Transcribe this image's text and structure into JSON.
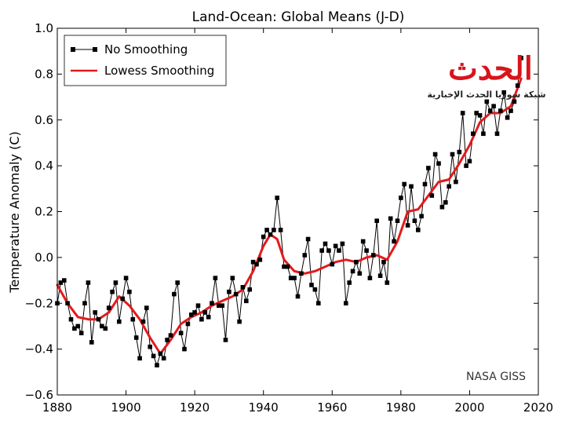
{
  "chart_data": {
    "type": "line",
    "title": "Land-Ocean: Global Means (J-D)",
    "xlabel": "",
    "ylabel": "Temperature Anomaly (C)",
    "xlim": [
      1880,
      2020
    ],
    "ylim": [
      -0.6,
      1.0
    ],
    "xticks": [
      1880,
      1900,
      1920,
      1940,
      1960,
      1980,
      2000,
      2020
    ],
    "yticks": [
      1.0,
      0.8,
      0.6,
      0.4,
      0.2,
      0.0,
      -0.2,
      -0.4,
      -0.6
    ],
    "ytick_labels": [
      "1.0",
      "0.8",
      "0.6",
      "0.4",
      "0.2",
      "0.0",
      "−0.2",
      "−0.4",
      "−0.6"
    ],
    "legend_position": "top-left",
    "series": [
      {
        "name": "No Smoothing",
        "color": "#000000",
        "marker": "square",
        "x": [
          1880,
          1881,
          1882,
          1883,
          1884,
          1885,
          1886,
          1887,
          1888,
          1889,
          1890,
          1891,
          1892,
          1893,
          1894,
          1895,
          1896,
          1897,
          1898,
          1899,
          1900,
          1901,
          1902,
          1903,
          1904,
          1905,
          1906,
          1907,
          1908,
          1909,
          1910,
          1911,
          1912,
          1913,
          1914,
          1915,
          1916,
          1917,
          1918,
          1919,
          1920,
          1921,
          1922,
          1923,
          1924,
          1925,
          1926,
          1927,
          1928,
          1929,
          1930,
          1931,
          1932,
          1933,
          1934,
          1935,
          1936,
          1937,
          1938,
          1939,
          1940,
          1941,
          1942,
          1943,
          1944,
          1945,
          1946,
          1947,
          1948,
          1949,
          1950,
          1951,
          1952,
          1953,
          1954,
          1955,
          1956,
          1957,
          1958,
          1959,
          1960,
          1961,
          1962,
          1963,
          1964,
          1965,
          1966,
          1967,
          1968,
          1969,
          1970,
          1971,
          1972,
          1973,
          1974,
          1975,
          1976,
          1977,
          1978,
          1979,
          1980,
          1981,
          1982,
          1983,
          1984,
          1985,
          1986,
          1987,
          1988,
          1989,
          1990,
          1991,
          1992,
          1993,
          1994,
          1995,
          1996,
          1997,
          1998,
          1999,
          2000,
          2001,
          2002,
          2003,
          2004,
          2005,
          2006,
          2007,
          2008,
          2009,
          2010,
          2011,
          2012,
          2013,
          2014,
          2015
        ],
        "values": [
          -0.2,
          -0.11,
          -0.1,
          -0.2,
          -0.27,
          -0.31,
          -0.3,
          -0.33,
          -0.2,
          -0.11,
          -0.37,
          -0.24,
          -0.27,
          -0.3,
          -0.31,
          -0.22,
          -0.15,
          -0.11,
          -0.28,
          -0.18,
          -0.09,
          -0.15,
          -0.27,
          -0.35,
          -0.44,
          -0.28,
          -0.22,
          -0.39,
          -0.43,
          -0.47,
          -0.42,
          -0.44,
          -0.36,
          -0.34,
          -0.16,
          -0.11,
          -0.33,
          -0.4,
          -0.29,
          -0.25,
          -0.24,
          -0.21,
          -0.27,
          -0.24,
          -0.26,
          -0.2,
          -0.09,
          -0.21,
          -0.21,
          -0.36,
          -0.15,
          -0.09,
          -0.16,
          -0.28,
          -0.13,
          -0.19,
          -0.14,
          -0.02,
          -0.03,
          -0.01,
          0.09,
          0.12,
          0.1,
          0.12,
          0.26,
          0.12,
          -0.04,
          -0.04,
          -0.09,
          -0.09,
          -0.17,
          -0.07,
          0.01,
          0.08,
          -0.12,
          -0.14,
          -0.2,
          0.03,
          0.06,
          0.03,
          -0.03,
          0.05,
          0.03,
          0.06,
          -0.2,
          -0.11,
          -0.06,
          -0.02,
          -0.07,
          0.07,
          0.03,
          -0.09,
          0.01,
          0.16,
          -0.08,
          -0.02,
          -0.11,
          0.17,
          0.07,
          0.16,
          0.26,
          0.32,
          0.14,
          0.31,
          0.16,
          0.12,
          0.18,
          0.32,
          0.39,
          0.27,
          0.45,
          0.41,
          0.22,
          0.24,
          0.31,
          0.45,
          0.33,
          0.46,
          0.63,
          0.4,
          0.42,
          0.54,
          0.63,
          0.62,
          0.54,
          0.68,
          0.64,
          0.66,
          0.54,
          0.64,
          0.72,
          0.61,
          0.64,
          0.68,
          0.75,
          0.87
        ]
      },
      {
        "name": "Lowess Smoothing",
        "color": "#e31a1c",
        "x": [
          1880,
          1883,
          1886,
          1889,
          1892,
          1895,
          1898,
          1901,
          1904,
          1907,
          1910,
          1913,
          1916,
          1919,
          1922,
          1925,
          1928,
          1931,
          1934,
          1937,
          1940,
          1942,
          1944,
          1946,
          1949,
          1952,
          1955,
          1958,
          1961,
          1964,
          1967,
          1970,
          1973,
          1976,
          1979,
          1982,
          1985,
          1988,
          1991,
          1994,
          1997,
          2000,
          2003,
          2006,
          2009,
          2012,
          2015
        ],
        "values": [
          -0.12,
          -0.2,
          -0.26,
          -0.27,
          -0.27,
          -0.24,
          -0.17,
          -0.21,
          -0.27,
          -0.35,
          -0.42,
          -0.36,
          -0.29,
          -0.26,
          -0.24,
          -0.21,
          -0.19,
          -0.17,
          -0.14,
          -0.06,
          0.05,
          0.1,
          0.08,
          -0.01,
          -0.06,
          -0.07,
          -0.06,
          -0.04,
          -0.02,
          -0.01,
          -0.02,
          0.0,
          0.01,
          -0.01,
          0.07,
          0.2,
          0.21,
          0.27,
          0.33,
          0.34,
          0.41,
          0.49,
          0.59,
          0.63,
          0.63,
          0.66,
          0.78
        ]
      }
    ],
    "annotations": [
      "NASA GISS"
    ]
  },
  "watermark": {
    "logo_text": "الحدث",
    "subtitle": "شبكة سوريا الحدث الإخبارية"
  }
}
